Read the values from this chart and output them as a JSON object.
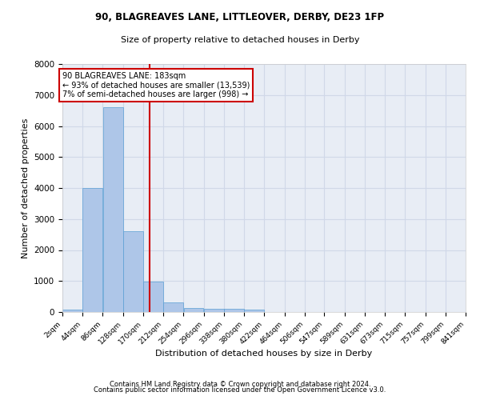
{
  "title1": "90, BLAGREAVES LANE, LITTLEOVER, DERBY, DE23 1FP",
  "title2": "Size of property relative to detached houses in Derby",
  "xlabel": "Distribution of detached houses by size in Derby",
  "ylabel": "Number of detached properties",
  "bin_edges": [
    2,
    44,
    86,
    128,
    170,
    212,
    254,
    296,
    338,
    380,
    422,
    464,
    506,
    547,
    589,
    631,
    673,
    715,
    757,
    799,
    841
  ],
  "bar_heights": [
    80,
    4000,
    6600,
    2600,
    980,
    320,
    120,
    100,
    100,
    80,
    0,
    0,
    0,
    0,
    0,
    0,
    0,
    0,
    0,
    0
  ],
  "bar_color": "#aec6e8",
  "bar_edgecolor": "#5a9fd4",
  "grid_color": "#d0d8e8",
  "background_color": "#e8edf5",
  "vline_x": 183,
  "vline_color": "#cc0000",
  "annotation_line1": "90 BLAGREAVES LANE: 183sqm",
  "annotation_line2": "← 93% of detached houses are smaller (13,539)",
  "annotation_line3": "7% of semi-detached houses are larger (998) →",
  "annotation_box_color": "#cc0000",
  "ylim": [
    0,
    8000
  ],
  "yticks": [
    0,
    1000,
    2000,
    3000,
    4000,
    5000,
    6000,
    7000,
    8000
  ],
  "footnote1": "Contains HM Land Registry data © Crown copyright and database right 2024.",
  "footnote2": "Contains public sector information licensed under the Open Government Licence v3.0."
}
